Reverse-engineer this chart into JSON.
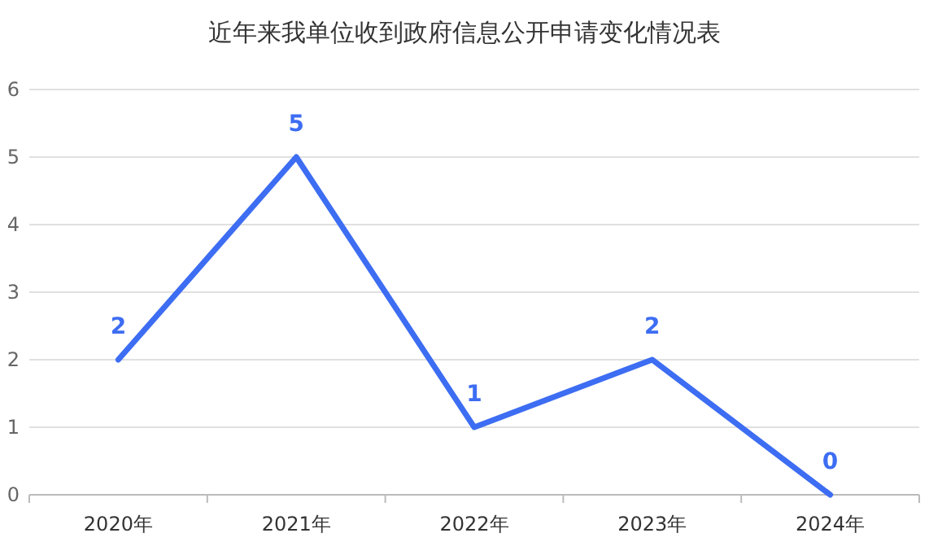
{
  "chart_data": {
    "type": "line",
    "title": "近年来我单位收到政府信息公开申请变化情况表",
    "categories": [
      "2020年",
      "2021年",
      "2022年",
      "2023年",
      "2024年"
    ],
    "series": [
      {
        "color": "#3d6df2",
        "values": [
          2,
          5,
          1,
          2,
          0
        ]
      }
    ],
    "ylim": [
      0,
      6
    ],
    "yticks": [
      0,
      1,
      2,
      3,
      4,
      5,
      6
    ],
    "grid": "y",
    "data_labels": true,
    "marker": "none",
    "line_style": "solid"
  }
}
